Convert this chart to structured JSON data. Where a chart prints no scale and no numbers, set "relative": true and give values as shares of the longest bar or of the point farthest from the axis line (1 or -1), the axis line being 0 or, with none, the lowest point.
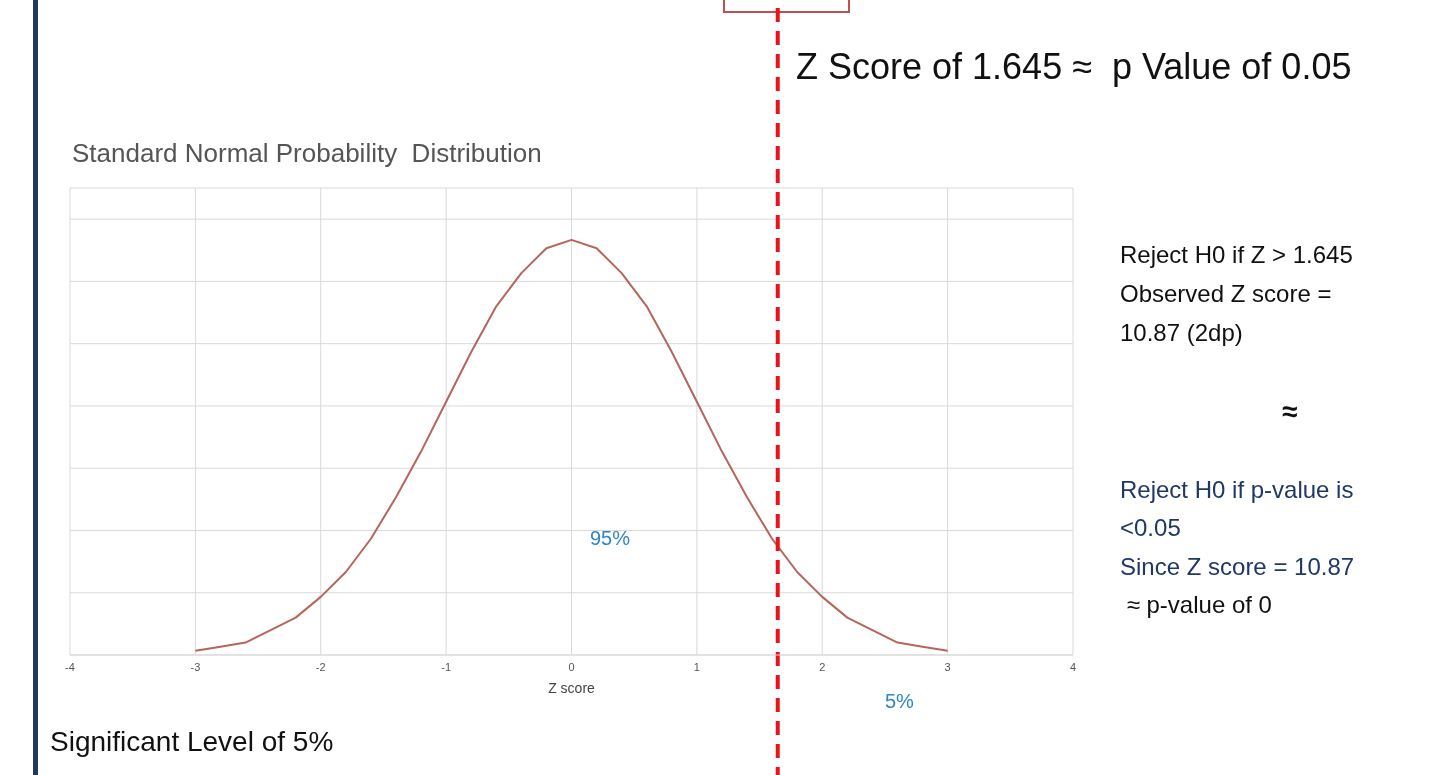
{
  "chart_data": {
    "type": "line",
    "title": "Standard Normal Probability  Distribution",
    "xlabel": "Z score",
    "relative": true,
    "x": [
      -3,
      -2.8,
      -2.6,
      -2.4,
      -2.2,
      -2,
      -1.8,
      -1.6,
      -1.4,
      -1.2,
      -1,
      -0.8,
      -0.6,
      -0.4,
      -0.2,
      0,
      0.2,
      0.4,
      0.6,
      0.8,
      1,
      1.2,
      1.4,
      1.6,
      1.8,
      2,
      2.2,
      2.4,
      2.6,
      2.8,
      3
    ],
    "series": [
      {
        "color": "#b5665b",
        "values": [
          0.01,
          0.02,
          0.03,
          0.06,
          0.09,
          0.14,
          0.2,
          0.28,
          0.38,
          0.49,
          0.61,
          0.73,
          0.84,
          0.92,
          0.98,
          1,
          0.98,
          0.92,
          0.84,
          0.73,
          0.61,
          0.49,
          0.38,
          0.28,
          0.2,
          0.14,
          0.09,
          0.06,
          0.03,
          0.02,
          0.01
        ]
      }
    ],
    "xlim": [
      -4,
      4
    ],
    "xticks": [
      -4,
      -3,
      -2,
      -1,
      0,
      1,
      2,
      3,
      4
    ],
    "grid": true,
    "marker": "none",
    "line_style": "solid",
    "ref_lines": [
      {
        "axis": "x",
        "value": 1.645,
        "color": "#e8141b",
        "line_style": "dashed"
      }
    ],
    "annotations": [
      "Z Score of 1.645 ≈  p Value of 0.05",
      "Reject H0 if Z > 1.645",
      "Observed Z score =",
      "10.87 (2dp)",
      "≈",
      "Reject H0 if p-value is",
      "<0.05",
      "Since Z score = 10.87",
      " ≈ p-value of 0",
      "95%",
      "5%",
      "Significant Level of 5%"
    ]
  }
}
